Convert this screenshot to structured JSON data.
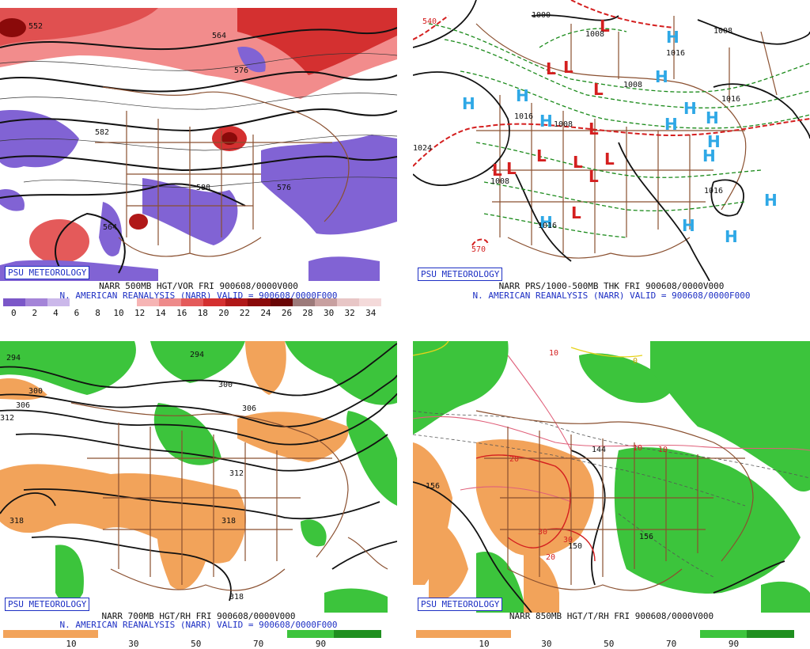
{
  "panels": [
    {
      "badge": "PSU METEOROLOGY",
      "caption": "NARR 500MB HGT/VOR FRI 900608/0000V000",
      "subcaption": "N. AMERICAN REANALYSIS (NARR) VALID = 900608/0000F000",
      "colorbar": {
        "colors": [
          "#7b57c8",
          "#a484d8",
          "#cbb8ea",
          "#ffffff",
          "#ffffff",
          "#ffffff",
          "#f6b4b4",
          "#ee8a8a",
          "#e45a5a",
          "#d43030",
          "#b01818",
          "#8a0a0a",
          "#6a0606",
          "#9c7a7a",
          "#c8a0a0",
          "#e8c6c6",
          "#f4dada"
        ],
        "ticks": [
          "0",
          "2",
          "4",
          "6",
          "8",
          "10",
          "12",
          "14",
          "16",
          "18",
          "20",
          "22",
          "24",
          "26",
          "28",
          "30",
          "32",
          "34"
        ]
      },
      "contour_labels": [
        "552",
        "564",
        "576",
        "582",
        "588",
        "576",
        "564"
      ]
    },
    {
      "badge": "PSU METEOROLOGY",
      "caption": "NARR PRS/1000-500MB THK FRI 900608/0000V000",
      "subcaption": "N. AMERICAN REANALYSIS (NARR) VALID = 900608/0000F000",
      "contour_labels": [
        "540",
        "1000",
        "1008",
        "1008",
        "1016",
        "1008",
        "1008",
        "1016",
        "1024",
        "1008",
        "1016",
        "1016",
        "570",
        "1016"
      ],
      "highs": [
        "H",
        "H",
        "H",
        "H",
        "H",
        "H",
        "H",
        "H",
        "H",
        "H",
        "H",
        "H",
        "H",
        "H"
      ],
      "lows": [
        "L",
        "L",
        "L",
        "L",
        "L",
        "L",
        "L",
        "L",
        "L",
        "L",
        "L",
        "L"
      ]
    },
    {
      "badge": "PSU METEOROLOGY",
      "caption": "NARR 700MB HGT/RH FRI 900608/0000V000",
      "subcaption": "N. AMERICAN REANALYSIS (NARR) VALID = 900608/0000F000",
      "colorbar": {
        "colors": [
          "#f2a35a",
          "#f2a35a",
          "#ffffff",
          "#ffffff",
          "#ffffff",
          "#ffffff",
          "#3cc43c",
          "#1f8f1f"
        ],
        "ticks": [
          "10",
          "30",
          "50",
          "70",
          "90"
        ]
      },
      "contour_labels": [
        "294",
        "294",
        "300",
        "306",
        "300",
        "312",
        "306",
        "312",
        "318",
        "318",
        "318"
      ]
    },
    {
      "badge": "PSU METEOROLOGY",
      "caption": "NARR 850MB HGT/T/RH FRI 900608/0000V000",
      "colorbar": {
        "colors": [
          "#f2a35a",
          "#f2a35a",
          "#ffffff",
          "#ffffff",
          "#ffffff",
          "#ffffff",
          "#3cc43c",
          "#1f8f1f"
        ],
        "ticks": [
          "10",
          "30",
          "50",
          "70",
          "90"
        ]
      },
      "contour_labels": [
        "10",
        "0",
        "144",
        "10",
        "10",
        "20",
        "156",
        "30",
        "30",
        "20",
        "156",
        "150"
      ]
    }
  ]
}
